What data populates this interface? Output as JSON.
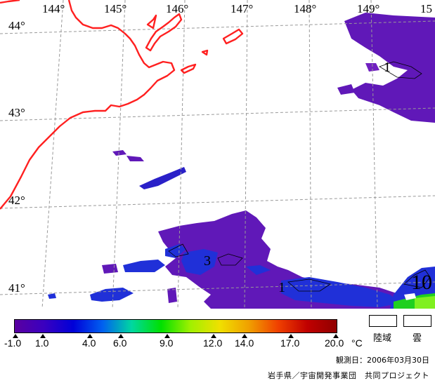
{
  "map": {
    "lon_labels": [
      "144°",
      "145°",
      "146°",
      "147°",
      "148°",
      "149°",
      "15"
    ],
    "lat_labels": [
      "44°",
      "43°",
      "42°",
      "41°"
    ],
    "contour_labels": [
      "1",
      "3",
      "1",
      "10"
    ],
    "colors": {
      "coastline": "#ff2020",
      "gridline": "#999999",
      "temp_violet": "#6018b8",
      "temp_blue": "#2030d8",
      "temp_green": "#20d020",
      "temp_lime": "#80f020"
    }
  },
  "colorbar": {
    "ticks": [
      "-1.0",
      "1.0",
      "4.0",
      "6.0",
      "9.0",
      "12.0",
      "14.0",
      "17.0",
      "20.0"
    ],
    "unit": "°C",
    "range": [
      -1.0,
      20.0
    ],
    "gradient": [
      "#5a00a0",
      "#3a00c0",
      "#0000d8",
      "#0060f0",
      "#00d8a0",
      "#00e000",
      "#a0f000",
      "#f0e000",
      "#f0a000",
      "#f04000",
      "#c00000",
      "#900000"
    ]
  },
  "legend": {
    "land_label": "陸域",
    "cloud_label": "雲"
  },
  "footer": {
    "date": "観測日：2006年03月30日",
    "credit": "岩手県／宇宙開発事業団　共同プロジェクト"
  }
}
